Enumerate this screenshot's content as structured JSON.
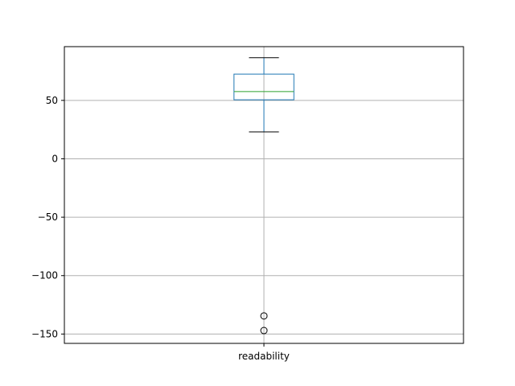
{
  "chart_data": {
    "type": "box",
    "title": "",
    "xlabel": "",
    "ylabel": "",
    "categories": [
      "readability"
    ],
    "ylim": [
      -158,
      96
    ],
    "yticks": [
      50,
      0,
      -50,
      -100,
      -150
    ],
    "ytick_labels": [
      "50",
      "0",
      "−50",
      "−100",
      "−150"
    ],
    "grid": true,
    "boxes": [
      {
        "category": "readability",
        "whisker_low": 23,
        "q1": 50.5,
        "median": 57.5,
        "q3": 72.5,
        "whisker_high": 86.5,
        "outliers": [
          -134.5,
          -147
        ]
      }
    ],
    "colors": {
      "box": "#1f77b4",
      "median": "#2ca02c",
      "whisker_cap": "#000000",
      "grid": "#b0b0b0",
      "outlier": "#000000"
    }
  }
}
